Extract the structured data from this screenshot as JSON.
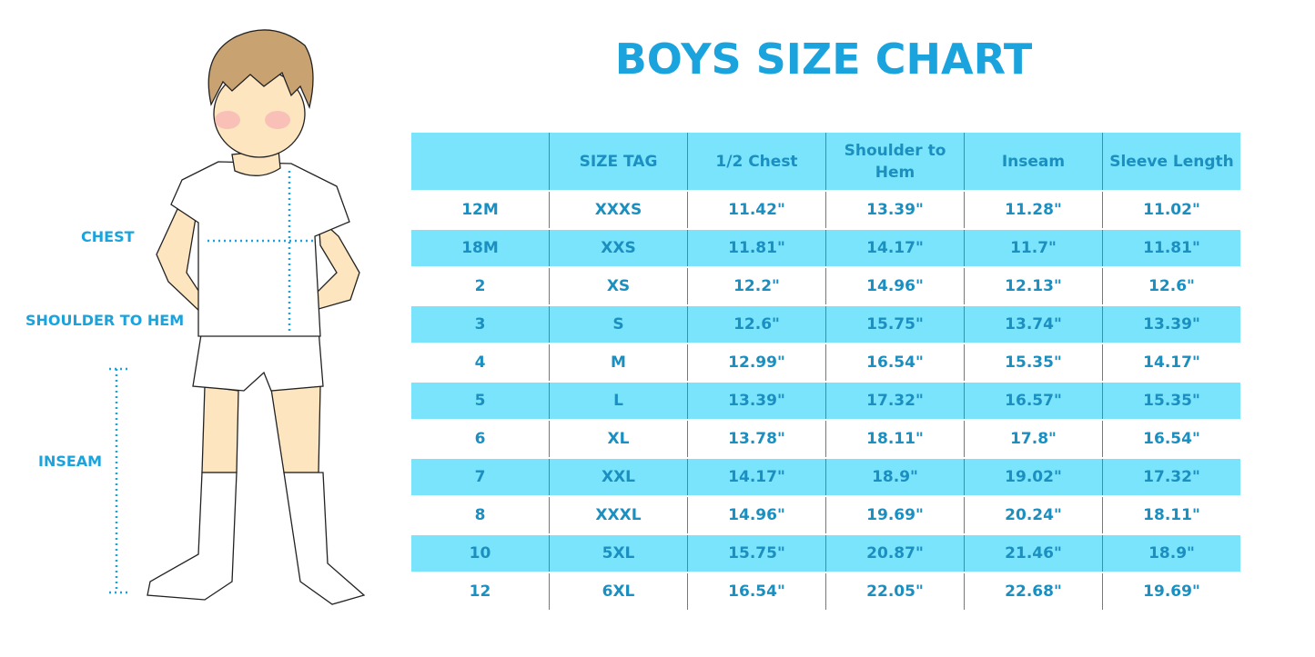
{
  "title": "BOYS SIZE CHART",
  "measure_labels": {
    "chest": "CHEST",
    "shoulder_to_hem": "SHOULDER TO HEM",
    "inseam": "INSEAM"
  },
  "colors": {
    "accent": "#1aa3dc",
    "stripe": "#7ae4fc",
    "text": "#1a8fc0"
  },
  "table": {
    "headers": [
      "",
      "SIZE TAG",
      "1/2 Chest",
      "Shoulder to Hem",
      "Inseam",
      "Sleeve Length"
    ],
    "rows": [
      [
        "12M",
        "XXXS",
        "11.42\"",
        "13.39\"",
        "11.28\"",
        "11.02\""
      ],
      [
        "18M",
        "XXS",
        "11.81\"",
        "14.17\"",
        "11.7\"",
        "11.81\""
      ],
      [
        "2",
        "XS",
        "12.2\"",
        "14.96\"",
        "12.13\"",
        "12.6\""
      ],
      [
        "3",
        "S",
        "12.6\"",
        "15.75\"",
        "13.74\"",
        "13.39\""
      ],
      [
        "4",
        "M",
        "12.99\"",
        "16.54\"",
        "15.35\"",
        "14.17\""
      ],
      [
        "5",
        "L",
        "13.39\"",
        "17.32\"",
        "16.57\"",
        "15.35\""
      ],
      [
        "6",
        "XL",
        "13.78\"",
        "18.11\"",
        "17.8\"",
        "16.54\""
      ],
      [
        "7",
        "XXL",
        "14.17\"",
        "18.9\"",
        "19.02\"",
        "17.32\""
      ],
      [
        "8",
        "XXXL",
        "14.96\"",
        "19.69\"",
        "20.24\"",
        "18.11\""
      ],
      [
        "10",
        "5XL",
        "15.75\"",
        "20.87\"",
        "21.46\"",
        "18.9\""
      ],
      [
        "12",
        "6XL",
        "16.54\"",
        "22.05\"",
        "22.68\"",
        "19.69\""
      ]
    ]
  }
}
